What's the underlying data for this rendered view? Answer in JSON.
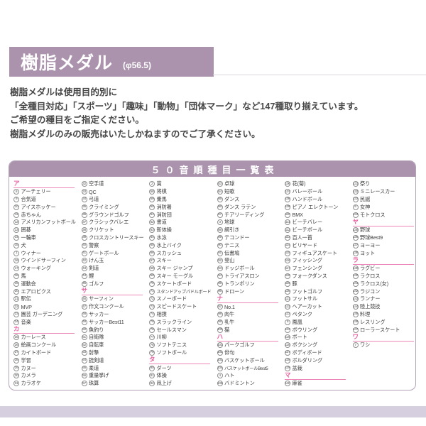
{
  "header": {
    "title": "樹脂メダル",
    "size_note": "(φ56.5)"
  },
  "intro": {
    "lines": [
      "樹脂メダルは使用目的別に",
      "「全種目対応」「スポーツ」「趣味」「動物」「団体マーク」など147種取り揃えています。",
      "ご希望の種目をご指定ください。",
      "樹脂メダルのみの販売はいたしかねますのでご了承ください。"
    ]
  },
  "colors": {
    "accent_mauve": "#ab92ad",
    "section_pink": "#e75e9f",
    "underline_pink": "#ed87b7",
    "table_border": "#b3a2b8",
    "bottom_band": "#d6cfdf"
  },
  "table": {
    "title": "５０音順種目一覧表",
    "columns": [
      {
        "blocks": [
          {
            "section": "ア",
            "items": [
              [
                "8",
                "アーチェリー"
              ],
              [
                "9",
                "合気道"
              ],
              [
                "10",
                "アイスホッケー"
              ],
              [
                "11",
                "赤ちゃん"
              ],
              [
                "12",
                "アメリカンフットボール"
              ],
              [
                "13",
                "囲碁"
              ],
              [
                "14",
                "一輪車"
              ],
              [
                "15",
                "犬"
              ],
              [
                "1",
                "ウィナー"
              ],
              [
                "16",
                "ウインドサーフィン"
              ],
              [
                "17",
                "ウォーキング"
              ],
              [
                "18",
                "馬"
              ],
              [
                "19",
                "運動会"
              ],
              [
                "20",
                "エアロビクス"
              ],
              [
                "21",
                "駅伝"
              ],
              [
                "22",
                "MVP"
              ],
              [
                "23",
                "園芸 ガーデニング"
              ],
              [
                "24",
                "音楽"
              ]
            ]
          },
          {
            "section": "カ",
            "items": [
              [
                "25",
                "カーレース"
              ],
              [
                "26",
                "絵画コンクール"
              ],
              [
                "27",
                "カイトボード"
              ],
              [
                "28",
                "学習"
              ],
              [
                "29",
                "カヌー"
              ],
              [
                "30",
                "カメラ"
              ],
              [
                "31",
                "カラオケ"
              ]
            ]
          }
        ]
      },
      {
        "blocks": [
          {
            "section": null,
            "items": [
              [
                "32",
                "空手道"
              ],
              [
                "33",
                "QC"
              ],
              [
                "34",
                "弓道"
              ],
              [
                "35",
                "クライミング"
              ],
              [
                "36",
                "グラウンドゴルフ"
              ],
              [
                "37",
                "クラシックバレエ"
              ],
              [
                "38",
                "クリケット"
              ],
              [
                "39",
                "クロスカントリースキー"
              ],
              [
                "40",
                "警察"
              ],
              [
                "41",
                "ゲートボール"
              ],
              [
                "42",
                "けん玉"
              ],
              [
                "43",
                "剣道"
              ],
              [
                "44",
                "鯉"
              ],
              [
                "45",
                "ゴルフ"
              ]
            ]
          },
          {
            "section": "サ",
            "items": [
              [
                "46",
                "サーフィン"
              ],
              [
                "47",
                "作文コンクール"
              ],
              [
                "48",
                "サッカー"
              ],
              [
                "49",
                "サッカーBest11"
              ],
              [
                "50",
                "魚釣り"
              ],
              [
                "51",
                "自衛隊"
              ],
              [
                "52",
                "自転車"
              ],
              [
                "53",
                "射撃"
              ],
              [
                "54",
                "銃剣道"
              ],
              [
                "55",
                "柔道"
              ],
              [
                "56",
                "重量挙げ"
              ],
              [
                "57",
                "珠算"
              ]
            ]
          }
        ]
      },
      {
        "blocks": [
          {
            "section": null,
            "items": [
              [
                "2",
                "賞"
              ],
              [
                "58",
                "将棋"
              ],
              [
                "59",
                "乗馬"
              ],
              [
                "60",
                "消防署"
              ],
              [
                "61",
                "消防団"
              ],
              [
                "62",
                "書道"
              ],
              [
                "63",
                "新体操"
              ],
              [
                "64",
                "水泳"
              ],
              [
                "65",
                "水上バイク"
              ],
              [
                "66",
                "スカッシュ"
              ],
              [
                "67",
                "スキー"
              ],
              [
                "68",
                "スキー ジャンプ"
              ],
              [
                "69",
                "スキー モーグル"
              ],
              [
                "70",
                "スケートボード"
              ],
              [
                "71",
                "スタンドアップパドルボード"
              ],
              [
                "72",
                "スノーボード"
              ],
              [
                "73",
                "スピードスケート"
              ],
              [
                "74",
                "相撲"
              ],
              [
                "75",
                "スラックライン"
              ],
              [
                "76",
                "セールスマン"
              ],
              [
                "77",
                "川柳"
              ],
              [
                "78",
                "ソフトテニス"
              ],
              [
                "79",
                "ソフトボール"
              ]
            ]
          },
          {
            "section": "タ",
            "items": [
              [
                "80",
                "ダーツ"
              ],
              [
                "81",
                "体操"
              ],
              [
                "82",
                "凧上げ"
              ]
            ]
          }
        ]
      },
      {
        "blocks": [
          {
            "section": null,
            "items": [
              [
                "83",
                "卓球"
              ],
              [
                "84",
                "短歌"
              ],
              [
                "85",
                "ダンス"
              ],
              [
                "86",
                "ダンス ラテン"
              ],
              [
                "87",
                "チアリーディング"
              ],
              [
                "3",
                "地球"
              ],
              [
                "88",
                "綱引き"
              ],
              [
                "89",
                "テコンドー"
              ],
              [
                "90",
                "テニス"
              ],
              [
                "91",
                "伝書鳩"
              ],
              [
                "92",
                "登山"
              ],
              [
                "93",
                "ドッジボール"
              ],
              [
                "94",
                "トライアスロン"
              ],
              [
                "95",
                "トランポリン"
              ],
              [
                "96",
                "ドローン"
              ]
            ]
          },
          {
            "section": "ナ",
            "items": [
              [
                "97",
                "No.1"
              ],
              [
                "98",
                "肉牛"
              ],
              [
                "99",
                "乳牛"
              ],
              [
                "100",
                "猫"
              ]
            ]
          },
          {
            "section": "ハ",
            "items": [
              [
                "101",
                "パークゴルフ"
              ],
              [
                "102",
                "俳句"
              ],
              [
                "103",
                "バスケットボール"
              ],
              [
                "104",
                "バスケットボールBest5"
              ],
              [
                "4",
                "ハト"
              ],
              [
                "105",
                "バドミントン"
              ]
            ]
          }
        ]
      },
      {
        "blocks": [
          {
            "section": null,
            "items": [
              [
                "106",
                "花(菊)"
              ],
              [
                "107",
                "バレーボール"
              ],
              [
                "108",
                "ハンドボール"
              ],
              [
                "109",
                "ピアノ エレクトーン"
              ],
              [
                "110",
                "BMX"
              ],
              [
                "111",
                "ビーチバレー"
              ],
              [
                "112",
                "ビーチボール"
              ],
              [
                "113",
                "百人一首"
              ],
              [
                "114",
                "ビリヤード"
              ],
              [
                "115",
                "フィギュアスケート"
              ],
              [
                "116",
                "フィッシング"
              ],
              [
                "117",
                "フェンシング"
              ],
              [
                "118",
                "フォークダンス"
              ],
              [
                "119",
                "豚"
              ],
              [
                "120",
                "フットゴルフ"
              ],
              [
                "121",
                "フットサル"
              ],
              [
                "122",
                "ヘアーカット"
              ],
              [
                "123",
                "ペタンク"
              ],
              [
                "5",
                "鳳凰"
              ],
              [
                "124",
                "ボウリング"
              ],
              [
                "125",
                "ボート"
              ],
              [
                "126",
                "ボクシング"
              ],
              [
                "127",
                "ボディボード"
              ],
              [
                "128",
                "ボルダリング"
              ],
              [
                "129",
                "盆栽"
              ]
            ]
          },
          {
            "section": "マ",
            "items": [
              [
                "130",
                "麻雀"
              ]
            ]
          }
        ]
      },
      {
        "blocks": [
          {
            "section": null,
            "items": [
              [
                "131",
                "祭り"
              ],
              [
                "132",
                "ミニレースカー"
              ],
              [
                "133",
                "民謡"
              ],
              [
                "6",
                "女神"
              ],
              [
                "134",
                "モトクロス"
              ]
            ]
          },
          {
            "section": "ヤ",
            "items": [
              [
                "135",
                "野球"
              ],
              [
                "136",
                "野球Best9"
              ],
              [
                "137",
                "ヨーヨー"
              ],
              [
                "138",
                "ヨット"
              ]
            ]
          },
          {
            "section": "ラ",
            "items": [
              [
                "139",
                "ラグビー"
              ],
              [
                "140",
                "ラクロス"
              ],
              [
                "141",
                "ラクロス(女)"
              ],
              [
                "142",
                "ラジコン"
              ],
              [
                "143",
                "ランナー"
              ],
              [
                "144",
                "陸上競技"
              ],
              [
                "145",
                "料理"
              ],
              [
                "146",
                "レスリング"
              ],
              [
                "147",
                "ローラースケート"
              ]
            ]
          },
          {
            "section": "ワ",
            "items": [
              [
                "7",
                "ワシ"
              ]
            ]
          }
        ]
      }
    ]
  }
}
